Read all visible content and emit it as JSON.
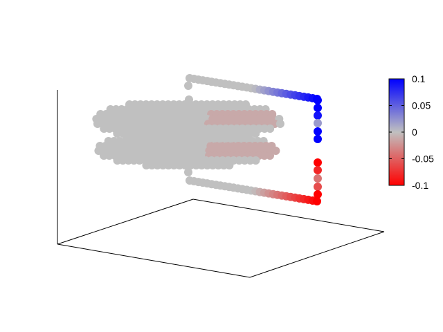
{
  "chart_data": {
    "type": "scatter",
    "dimensions": 3,
    "title": "",
    "xlabel": "",
    "ylabel": "",
    "zlabel": "",
    "grid": false,
    "legend": "none",
    "marker": "filled circle",
    "colormap": {
      "low_color": "#ff0000",
      "mid_color": "#c0c0c0",
      "high_color": "#0000ff",
      "range": [
        -0.1,
        0.1
      ],
      "placement": "right",
      "tick_labels": [
        "0.1",
        "0.05",
        "0",
        "-0.05",
        "-0.1"
      ],
      "tick_values": [
        0.1,
        0.05,
        0,
        -0.05,
        -0.1
      ]
    },
    "series": [
      {
        "values_shown": "dense grey elliptical cloud of points near value 0",
        "value_range": [
          -0.02,
          0.02
        ]
      },
      {
        "values_shown": "upper edge row of points, grey at back rising to blue at front",
        "value_range": [
          0,
          0.1
        ]
      },
      {
        "values_shown": "lower edge row of points, grey at back falling to red at front",
        "value_range": [
          -0.1,
          0
        ]
      },
      {
        "values_shown": "front vertical column of points, blue at top, red at bottom",
        "values": [
          0.1,
          0.1,
          0.09,
          0.02,
          0.1,
          0.1,
          -0.1,
          -0.08,
          -0.04,
          -0.06,
          -0.1
        ]
      }
    ]
  }
}
